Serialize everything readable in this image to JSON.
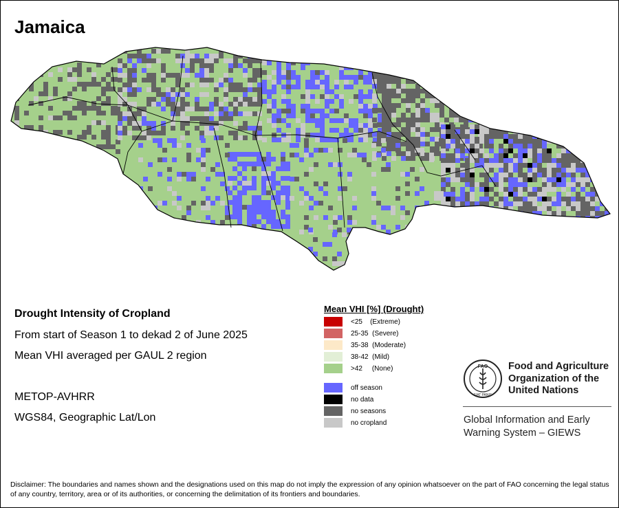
{
  "map": {
    "title": "Jamaica",
    "colors": {
      "vegetation": "#a5d08b",
      "off_season": "#6666ff",
      "no_seasons": "#646464",
      "no_cropland": "#c8c8c8",
      "no_data": "#000000",
      "boundary": "#000000"
    }
  },
  "info": {
    "heading": "Drought Intensity of Cropland",
    "period": "From start of Season 1 to dekad 2 of June 2025",
    "method": "Mean VHI averaged per GAUL 2 region",
    "sensor": "METOP-AVHRR",
    "projection": "WGS84, Geographic Lat/Lon"
  },
  "legend": {
    "title": "Mean VHI [%] (Drought)",
    "items": [
      {
        "label": "<25    (Extreme)",
        "color": "#c80000"
      },
      {
        "label": "25-35  (Severe)",
        "color": "#d26464"
      },
      {
        "label": "35-38  (Moderate)",
        "color": "#fde9c8"
      },
      {
        "label": "38-42  (Mild)",
        "color": "#e2efd6"
      },
      {
        "label": ">42     (None)",
        "color": "#a5d08b"
      },
      {
        "label": "off season",
        "color": "#6666ff"
      },
      {
        "label": "no data",
        "color": "#000000"
      },
      {
        "label": "no seasons",
        "color": "#646464"
      },
      {
        "label": "no cropland",
        "color": "#c8c8c8"
      }
    ]
  },
  "org": {
    "logo_text": "FIAT PANIS",
    "logo_letters": "FAO",
    "name_lines": [
      "Food and Agriculture",
      "Organization of the",
      "United Nations"
    ],
    "system_lines": [
      "Global Information and Early",
      "Warning System – GIEWS"
    ]
  },
  "disclaimer": "Disclaimer: The boundaries and names shown and the designations used on this map do not imply the expression of any opinion whatsoever on the part of FAO concerning the legal status of any country, territory, area or of its authorities, or concerning the delimitation of its frontiers and boundaries."
}
